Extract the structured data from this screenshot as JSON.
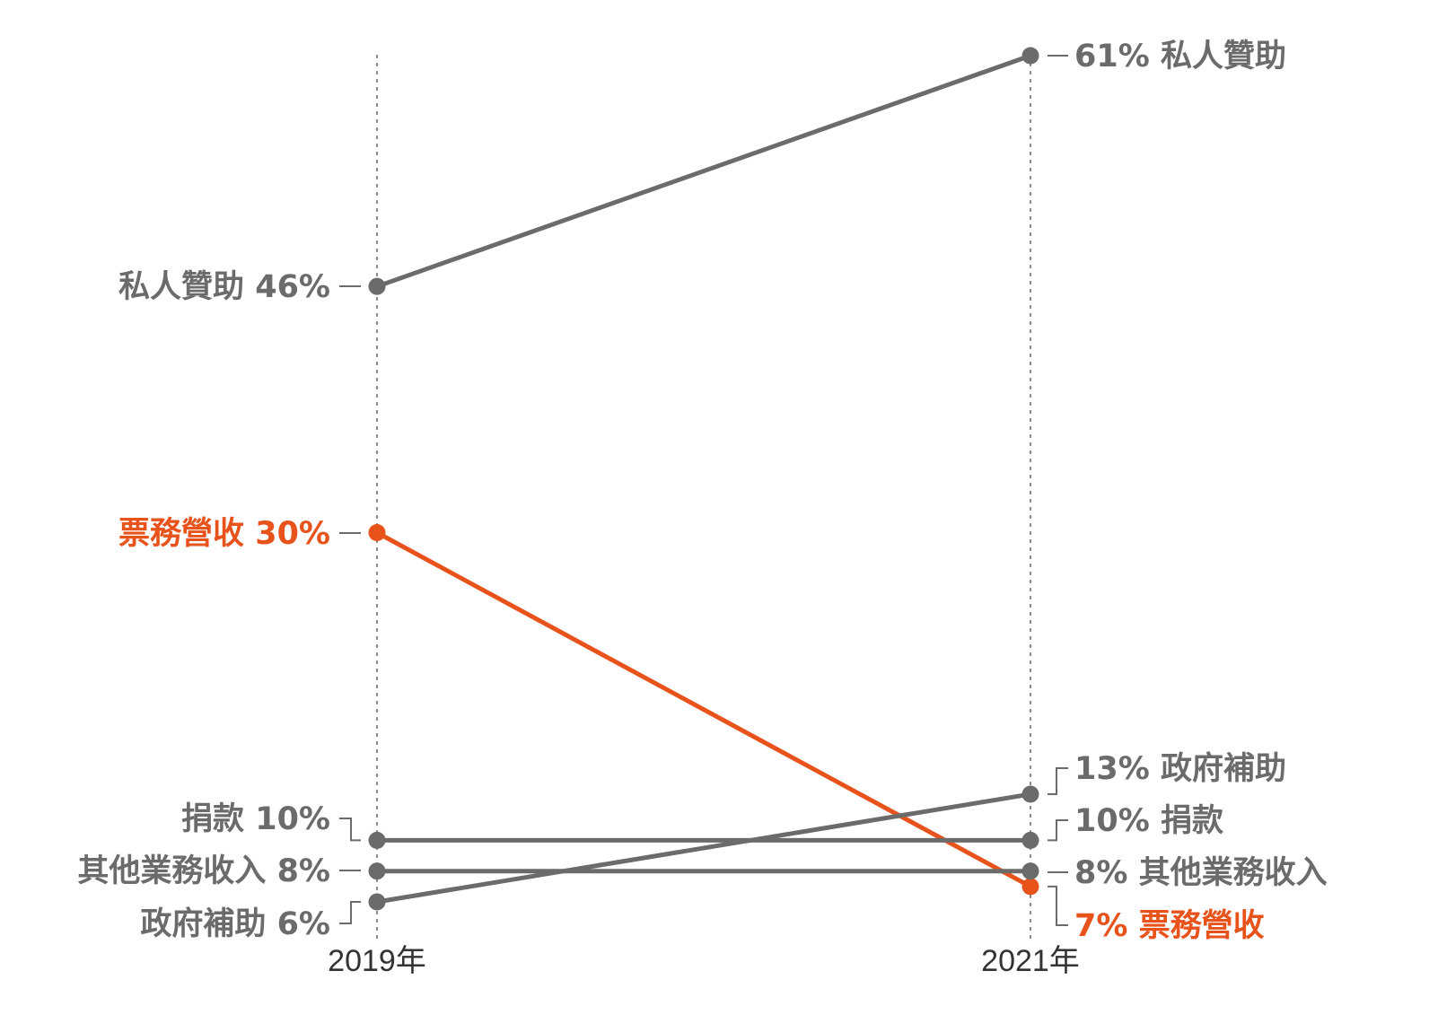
{
  "chart_data": {
    "type": "line",
    "subtype": "slope",
    "x": [
      "2019年",
      "2021年"
    ],
    "unit": "%",
    "series": [
      {
        "name": "私人贊助",
        "values": [
          46,
          61
        ],
        "color": "#6b6b6b",
        "highlight": false
      },
      {
        "name": "票務營收",
        "values": [
          30,
          7
        ],
        "color": "#e8531c",
        "highlight": true
      },
      {
        "name": "捐款",
        "values": [
          10,
          10
        ],
        "color": "#6b6b6b",
        "highlight": false
      },
      {
        "name": "其他業務收入",
        "values": [
          8,
          8
        ],
        "color": "#6b6b6b",
        "highlight": false
      },
      {
        "name": "政府補助",
        "values": [
          6,
          13
        ],
        "color": "#6b6b6b",
        "highlight": false
      }
    ],
    "ylim": [
      0,
      65
    ],
    "grid": false,
    "legend": "none",
    "left_labels": [
      "私人贊助 46%",
      "票務營收 30%",
      "捐款 10%",
      "其他業務收入 8%",
      "政府補助 6%"
    ],
    "right_labels": [
      "61% 私人贊助",
      "7% 票務營收",
      "10% 捐款",
      "8% 其他業務收入",
      "13% 政府補助"
    ]
  },
  "colors": {
    "highlight": "#e8531c",
    "neutral": "#6b6b6b",
    "axis": "#8a8a8a",
    "tick_text": "#333333"
  }
}
